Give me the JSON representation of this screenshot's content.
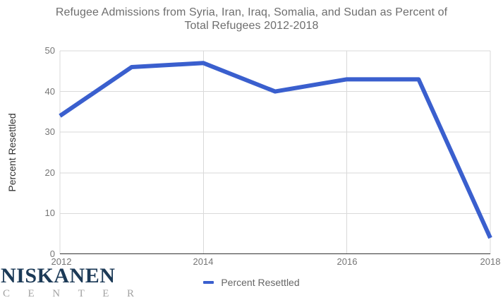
{
  "header": {
    "title_line1": "Refugee Admissions from Syria, Iran, Iraq, Somalia, and Sudan as Percent of",
    "title_line2": "Total Refugees 2012-2018"
  },
  "chart_data": {
    "type": "line",
    "title": "Refugee Admissions from Syria, Iran, Iraq, Somalia, and Sudan as Percent of Total Refugees 2012-2018",
    "x": [
      2012,
      2013,
      2014,
      2015,
      2016,
      2017,
      2018
    ],
    "series": [
      {
        "name": "Percent Resettled",
        "values": [
          34,
          46,
          47,
          40,
          43,
          43,
          4
        ]
      }
    ],
    "xlabel": "",
    "ylabel": "Percent Resettled",
    "xlim": [
      2012,
      2018
    ],
    "ylim": [
      0,
      50
    ],
    "yticks": [
      0,
      10,
      20,
      30,
      40,
      50
    ],
    "xticks": [
      2012,
      2014,
      2016,
      2018
    ],
    "grid": true,
    "legend_position": "bottom"
  },
  "legend": {
    "label": "Percent Resettled"
  },
  "logo": {
    "line1": "NISKANEN",
    "line2": "CENTER"
  },
  "colors": {
    "line": "#3a5fce",
    "grid": "#d9d9d9",
    "axis": "#333333",
    "logo_navy": "#1c3a57",
    "logo_gray": "#a3a3a3"
  }
}
